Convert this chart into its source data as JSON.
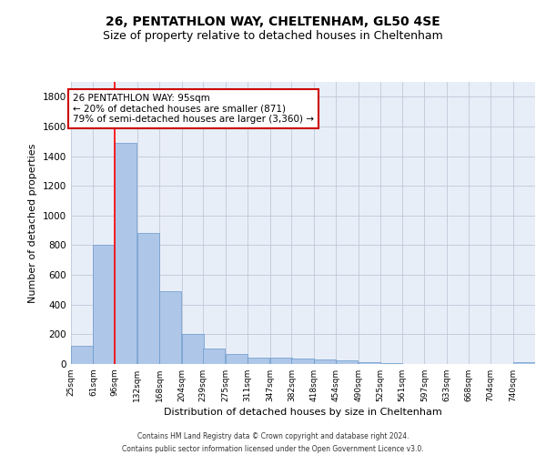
{
  "title1": "26, PENTATHLON WAY, CHELTENHAM, GL50 4SE",
  "title2": "Size of property relative to detached houses in Cheltenham",
  "xlabel": "Distribution of detached houses by size in Cheltenham",
  "ylabel": "Number of detached properties",
  "footer1": "Contains HM Land Registry data © Crown copyright and database right 2024.",
  "footer2": "Contains public sector information licensed under the Open Government Licence v3.0.",
  "annotation_line1": "26 PENTATHLON WAY: 95sqm",
  "annotation_line2": "← 20% of detached houses are smaller (871)",
  "annotation_line3": "79% of semi-detached houses are larger (3,360) →",
  "bar_color": "#aec6e8",
  "bar_edge_color": "#6699cc",
  "red_line_x": 96,
  "annotation_box_color": "#cc0000",
  "categories": [
    "25sqm",
    "61sqm",
    "96sqm",
    "132sqm",
    "168sqm",
    "204sqm",
    "239sqm",
    "275sqm",
    "311sqm",
    "347sqm",
    "382sqm",
    "418sqm",
    "454sqm",
    "490sqm",
    "525sqm",
    "561sqm",
    "597sqm",
    "633sqm",
    "668sqm",
    "704sqm",
    "740sqm"
  ],
  "bin_edges": [
    25,
    61,
    96,
    132,
    168,
    204,
    239,
    275,
    311,
    347,
    382,
    418,
    454,
    490,
    525,
    561,
    597,
    633,
    668,
    704,
    740
  ],
  "bar_heights": [
    125,
    800,
    1490,
    880,
    490,
    205,
    105,
    65,
    40,
    45,
    35,
    30,
    22,
    12,
    5,
    3,
    3,
    3,
    3,
    3,
    15
  ],
  "ylim": [
    0,
    1900
  ],
  "yticks": [
    0,
    200,
    400,
    600,
    800,
    1000,
    1200,
    1400,
    1600,
    1800
  ],
  "background_color": "#e8eef8",
  "grid_color": "#c0c8d8",
  "title1_fontsize": 10,
  "title2_fontsize": 9,
  "xlabel_fontsize": 8,
  "ylabel_fontsize": 8,
  "footer_fontsize": 5.5,
  "annot_fontsize": 7.5
}
